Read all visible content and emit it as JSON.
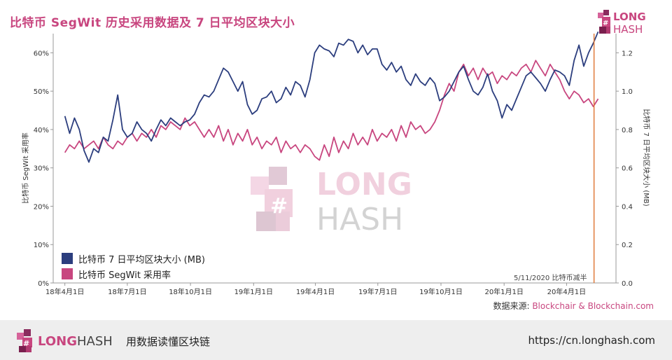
{
  "header": {
    "title": "比特币 SegWit 历史采用数据及 7 日平均区块大小",
    "brand_long": "LONG",
    "brand_hash": "HASH"
  },
  "footer": {
    "brand_long": "LONG",
    "brand_hash": "HASH",
    "slogan": "用数据读懂区块链",
    "url": "https://cn.longhash.com"
  },
  "source": {
    "label": "数据来源:",
    "value": "Blockchair & Blockchain.com"
  },
  "watermark": {
    "long": "LONG",
    "hash": "HASH"
  },
  "colors": {
    "block_size": "#2c3e7e",
    "segwit": "#c8467f",
    "halving_line": "#e07a3a",
    "title": "#c8467f"
  },
  "chart_data": {
    "type": "line",
    "title": "比特币 SegWit 历史采用数据及 7 日平均区块大小",
    "ylabel_left": "比特币 SegWit 采用率",
    "ylabel_right": "比特币 7 日平均区块大小 (MB)",
    "ylim_left": [
      0,
      65
    ],
    "ylim_right": [
      0,
      1.3
    ],
    "yticks_left": [
      "0%",
      "10%",
      "20%",
      "30%",
      "40%",
      "50%",
      "60%"
    ],
    "yticks_right": [
      "0.0",
      "0.2",
      "0.4",
      "0.6",
      "0.8",
      "1.0",
      "1.2"
    ],
    "x_start": "2018-03-15",
    "x_end": "2020-06-12",
    "xticks": [
      {
        "date": "2018-04-01",
        "label": "18年4月1日"
      },
      {
        "date": "2018-07-01",
        "label": "18年7月1日"
      },
      {
        "date": "2018-10-01",
        "label": "18年10月1日"
      },
      {
        "date": "2019-01-01",
        "label": "19年1月1日"
      },
      {
        "date": "2019-04-01",
        "label": "19年4月1日"
      },
      {
        "date": "2019-07-01",
        "label": "19年7月1日"
      },
      {
        "date": "2019-10-01",
        "label": "19年10月1日"
      },
      {
        "date": "2020-01-01",
        "label": "20年1月1日"
      },
      {
        "date": "2020-04-01",
        "label": "20年4月1日"
      }
    ],
    "legend": {
      "placement": "bottom-left"
    },
    "annotation": {
      "date": "2020-05-11",
      "text": "5/11/2020 比特币减半"
    },
    "series": [
      {
        "name": "比特币 7 日平均区块大小 (MB)",
        "axis": "right",
        "points": [
          [
            "2018-04-01",
            0.87
          ],
          [
            "2018-04-08",
            0.78
          ],
          [
            "2018-04-15",
            0.86
          ],
          [
            "2018-04-22",
            0.8
          ],
          [
            "2018-04-29",
            0.69
          ],
          [
            "2018-05-06",
            0.63
          ],
          [
            "2018-05-13",
            0.7
          ],
          [
            "2018-05-20",
            0.68
          ],
          [
            "2018-05-27",
            0.76
          ],
          [
            "2018-06-03",
            0.74
          ],
          [
            "2018-06-10",
            0.85
          ],
          [
            "2018-06-17",
            0.98
          ],
          [
            "2018-06-24",
            0.8
          ],
          [
            "2018-07-01",
            0.76
          ],
          [
            "2018-07-08",
            0.78
          ],
          [
            "2018-07-15",
            0.84
          ],
          [
            "2018-07-22",
            0.8
          ],
          [
            "2018-07-29",
            0.78
          ],
          [
            "2018-08-05",
            0.74
          ],
          [
            "2018-08-12",
            0.8
          ],
          [
            "2018-08-19",
            0.85
          ],
          [
            "2018-08-26",
            0.82
          ],
          [
            "2018-09-02",
            0.86
          ],
          [
            "2018-09-09",
            0.84
          ],
          [
            "2018-09-16",
            0.82
          ],
          [
            "2018-09-23",
            0.84
          ],
          [
            "2018-09-30",
            0.85
          ],
          [
            "2018-10-07",
            0.88
          ],
          [
            "2018-10-14",
            0.94
          ],
          [
            "2018-10-21",
            0.98
          ],
          [
            "2018-10-28",
            0.97
          ],
          [
            "2018-11-04",
            1.0
          ],
          [
            "2018-11-11",
            1.06
          ],
          [
            "2018-11-18",
            1.12
          ],
          [
            "2018-11-25",
            1.1
          ],
          [
            "2018-12-02",
            1.05
          ],
          [
            "2018-12-09",
            1.0
          ],
          [
            "2018-12-16",
            1.05
          ],
          [
            "2018-12-23",
            0.93
          ],
          [
            "2018-12-30",
            0.88
          ],
          [
            "2019-01-06",
            0.9
          ],
          [
            "2019-01-13",
            0.96
          ],
          [
            "2019-01-20",
            0.97
          ],
          [
            "2019-01-27",
            1.0
          ],
          [
            "2019-02-03",
            0.94
          ],
          [
            "2019-02-10",
            0.96
          ],
          [
            "2019-02-17",
            1.02
          ],
          [
            "2019-02-24",
            0.98
          ],
          [
            "2019-03-03",
            1.05
          ],
          [
            "2019-03-10",
            1.03
          ],
          [
            "2019-03-17",
            0.97
          ],
          [
            "2019-03-24",
            1.06
          ],
          [
            "2019-03-31",
            1.2
          ],
          [
            "2019-04-07",
            1.24
          ],
          [
            "2019-04-14",
            1.22
          ],
          [
            "2019-04-21",
            1.21
          ],
          [
            "2019-04-28",
            1.18
          ],
          [
            "2019-05-05",
            1.25
          ],
          [
            "2019-05-12",
            1.24
          ],
          [
            "2019-05-19",
            1.27
          ],
          [
            "2019-05-26",
            1.26
          ],
          [
            "2019-06-02",
            1.2
          ],
          [
            "2019-06-09",
            1.24
          ],
          [
            "2019-06-16",
            1.19
          ],
          [
            "2019-06-23",
            1.22
          ],
          [
            "2019-06-30",
            1.22
          ],
          [
            "2019-07-07",
            1.14
          ],
          [
            "2019-07-14",
            1.11
          ],
          [
            "2019-07-21",
            1.15
          ],
          [
            "2019-07-28",
            1.1
          ],
          [
            "2019-08-04",
            1.13
          ],
          [
            "2019-08-11",
            1.06
          ],
          [
            "2019-08-18",
            1.03
          ],
          [
            "2019-08-25",
            1.09
          ],
          [
            "2019-09-01",
            1.05
          ],
          [
            "2019-09-08",
            1.03
          ],
          [
            "2019-09-15",
            1.07
          ],
          [
            "2019-09-22",
            1.04
          ],
          [
            "2019-09-29",
            0.95
          ],
          [
            "2019-10-06",
            0.97
          ],
          [
            "2019-10-13",
            1.0
          ],
          [
            "2019-10-20",
            1.05
          ],
          [
            "2019-10-27",
            1.1
          ],
          [
            "2019-11-03",
            1.13
          ],
          [
            "2019-11-10",
            1.06
          ],
          [
            "2019-11-17",
            1.0
          ],
          [
            "2019-11-24",
            0.98
          ],
          [
            "2019-12-01",
            1.02
          ],
          [
            "2019-12-08",
            1.09
          ],
          [
            "2019-12-15",
            1.0
          ],
          [
            "2019-12-22",
            0.95
          ],
          [
            "2019-12-29",
            0.86
          ],
          [
            "2020-01-05",
            0.93
          ],
          [
            "2020-01-12",
            0.9
          ],
          [
            "2020-01-19",
            0.96
          ],
          [
            "2020-01-26",
            1.02
          ],
          [
            "2020-02-02",
            1.08
          ],
          [
            "2020-02-09",
            1.1
          ],
          [
            "2020-02-16",
            1.07
          ],
          [
            "2020-02-23",
            1.04
          ],
          [
            "2020-03-01",
            1.0
          ],
          [
            "2020-03-08",
            1.06
          ],
          [
            "2020-03-15",
            1.11
          ],
          [
            "2020-03-22",
            1.1
          ],
          [
            "2020-03-29",
            1.08
          ],
          [
            "2020-04-05",
            1.03
          ],
          [
            "2020-04-12",
            1.16
          ],
          [
            "2020-04-19",
            1.24
          ],
          [
            "2020-04-26",
            1.13
          ],
          [
            "2020-05-03",
            1.2
          ],
          [
            "2020-05-10",
            1.25
          ],
          [
            "2020-05-17",
            1.31
          ]
        ]
      },
      {
        "name": "比特币 SegWit 采用率",
        "axis": "left",
        "points": [
          [
            "2018-04-01",
            34
          ],
          [
            "2018-04-08",
            36
          ],
          [
            "2018-04-15",
            35
          ],
          [
            "2018-04-22",
            37
          ],
          [
            "2018-04-29",
            35
          ],
          [
            "2018-05-06",
            36
          ],
          [
            "2018-05-13",
            37
          ],
          [
            "2018-05-20",
            35
          ],
          [
            "2018-05-27",
            38
          ],
          [
            "2018-06-03",
            36
          ],
          [
            "2018-06-10",
            35
          ],
          [
            "2018-06-17",
            37
          ],
          [
            "2018-06-24",
            36
          ],
          [
            "2018-07-01",
            38
          ],
          [
            "2018-07-08",
            39
          ],
          [
            "2018-07-15",
            37
          ],
          [
            "2018-07-22",
            39
          ],
          [
            "2018-07-29",
            38
          ],
          [
            "2018-08-05",
            40
          ],
          [
            "2018-08-12",
            38
          ],
          [
            "2018-08-19",
            41
          ],
          [
            "2018-08-26",
            40
          ],
          [
            "2018-09-02",
            42
          ],
          [
            "2018-09-09",
            41
          ],
          [
            "2018-09-16",
            40
          ],
          [
            "2018-09-23",
            43
          ],
          [
            "2018-09-30",
            41
          ],
          [
            "2018-10-07",
            42
          ],
          [
            "2018-10-14",
            40
          ],
          [
            "2018-10-21",
            38
          ],
          [
            "2018-10-28",
            40
          ],
          [
            "2018-11-04",
            38
          ],
          [
            "2018-11-11",
            41
          ],
          [
            "2018-11-18",
            37
          ],
          [
            "2018-11-25",
            40
          ],
          [
            "2018-12-02",
            36
          ],
          [
            "2018-12-09",
            39
          ],
          [
            "2018-12-16",
            37
          ],
          [
            "2018-12-23",
            40
          ],
          [
            "2018-12-30",
            36
          ],
          [
            "2019-01-06",
            38
          ],
          [
            "2019-01-13",
            35
          ],
          [
            "2019-01-20",
            37
          ],
          [
            "2019-01-27",
            36
          ],
          [
            "2019-02-03",
            38
          ],
          [
            "2019-02-10",
            34
          ],
          [
            "2019-02-17",
            37
          ],
          [
            "2019-02-24",
            35
          ],
          [
            "2019-03-03",
            36
          ],
          [
            "2019-03-10",
            34
          ],
          [
            "2019-03-17",
            36
          ],
          [
            "2019-03-24",
            35
          ],
          [
            "2019-03-31",
            33
          ],
          [
            "2019-04-07",
            32
          ],
          [
            "2019-04-14",
            36
          ],
          [
            "2019-04-21",
            33
          ],
          [
            "2019-04-28",
            38
          ],
          [
            "2019-05-05",
            34
          ],
          [
            "2019-05-12",
            37
          ],
          [
            "2019-05-19",
            35
          ],
          [
            "2019-05-26",
            39
          ],
          [
            "2019-06-02",
            36
          ],
          [
            "2019-06-09",
            38
          ],
          [
            "2019-06-16",
            36
          ],
          [
            "2019-06-23",
            40
          ],
          [
            "2019-06-30",
            37
          ],
          [
            "2019-07-07",
            39
          ],
          [
            "2019-07-14",
            38
          ],
          [
            "2019-07-21",
            40
          ],
          [
            "2019-07-28",
            37
          ],
          [
            "2019-08-04",
            41
          ],
          [
            "2019-08-11",
            38
          ],
          [
            "2019-08-18",
            42
          ],
          [
            "2019-08-25",
            40
          ],
          [
            "2019-09-01",
            41
          ],
          [
            "2019-09-08",
            39
          ],
          [
            "2019-09-15",
            40
          ],
          [
            "2019-09-22",
            42
          ],
          [
            "2019-09-29",
            45
          ],
          [
            "2019-10-06",
            49
          ],
          [
            "2019-10-13",
            52
          ],
          [
            "2019-10-20",
            50
          ],
          [
            "2019-10-27",
            55
          ],
          [
            "2019-11-03",
            57
          ],
          [
            "2019-11-10",
            54
          ],
          [
            "2019-11-17",
            56
          ],
          [
            "2019-11-24",
            53
          ],
          [
            "2019-12-01",
            56
          ],
          [
            "2019-12-08",
            54
          ],
          [
            "2019-12-15",
            55
          ],
          [
            "2019-12-22",
            52
          ],
          [
            "2019-12-29",
            54
          ],
          [
            "2020-01-05",
            53
          ],
          [
            "2020-01-12",
            55
          ],
          [
            "2020-01-19",
            54
          ],
          [
            "2020-01-26",
            56
          ],
          [
            "2020-02-02",
            57
          ],
          [
            "2020-02-09",
            55
          ],
          [
            "2020-02-16",
            58
          ],
          [
            "2020-02-23",
            56
          ],
          [
            "2020-03-01",
            54
          ],
          [
            "2020-03-08",
            57
          ],
          [
            "2020-03-15",
            55
          ],
          [
            "2020-03-22",
            53
          ],
          [
            "2020-03-29",
            50
          ],
          [
            "2020-04-05",
            48
          ],
          [
            "2020-04-12",
            50
          ],
          [
            "2020-04-19",
            49
          ],
          [
            "2020-04-26",
            47
          ],
          [
            "2020-05-03",
            48
          ],
          [
            "2020-05-10",
            46
          ],
          [
            "2020-05-17",
            48
          ]
        ]
      }
    ]
  }
}
